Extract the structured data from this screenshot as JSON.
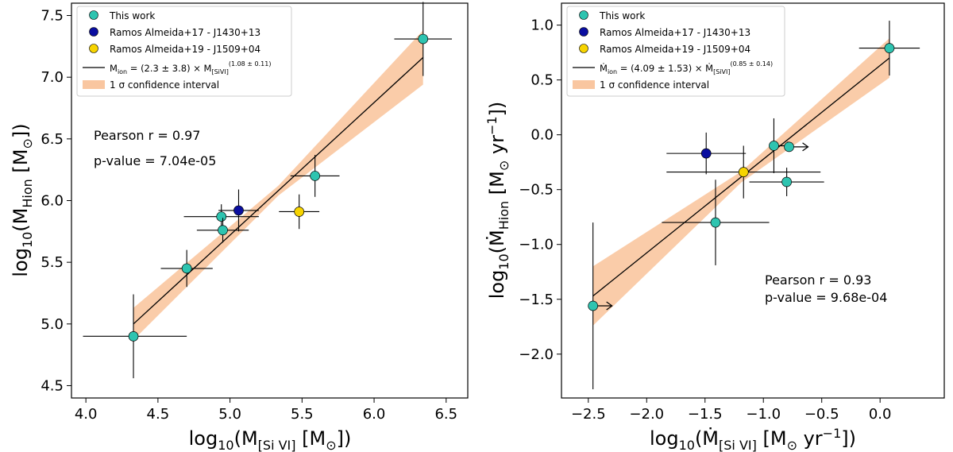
{
  "chart_data": [
    {
      "type": "scatter",
      "panel": "left",
      "xlabel": "log10(M[SiVI] [M⊙])",
      "ylabel": "log10(MHion [M⊙])",
      "xlim": [
        3.9,
        6.65
      ],
      "ylim": [
        4.4,
        7.6
      ],
      "xticks": [
        4.0,
        4.5,
        5.0,
        5.5,
        6.0,
        6.5
      ],
      "yticks": [
        4.5,
        5.0,
        5.5,
        6.0,
        6.5,
        7.0,
        7.5
      ],
      "legend": [
        "This work",
        "Ramos Almeida+17 - J1430+13",
        "Ramos Almeida+19 - J1509+04",
        "Mion = (2.3 ± 3.8) × M[SiVI]^(1.08 ± 0.11)",
        "1 σ confidence interval"
      ],
      "annotations": [
        "Pearson r = 0.97",
        "p-value = 7.04e-05"
      ],
      "fit": {
        "x0": 4.33,
        "x1": 6.34,
        "y0": 5.0,
        "y1": 7.16,
        "band_half_lo": 0.13,
        "band_half_mid": 0.04,
        "band_half_hi": 0.22
      },
      "series": [
        {
          "name": "This work",
          "color": "#2ec4b0",
          "points": [
            {
              "x": 4.33,
              "y": 4.9,
              "xerr": [
                0.35,
                0.37
              ],
              "yerr": [
                0.34,
                0.34
              ]
            },
            {
              "x": 4.7,
              "y": 5.45,
              "xerr": [
                0.18,
                0.18
              ],
              "yerr": [
                0.15,
                0.15
              ]
            },
            {
              "x": 4.94,
              "y": 5.87,
              "xerr": [
                0.26,
                0.26
              ],
              "yerr": [
                0.1,
                0.1
              ]
            },
            {
              "x": 4.95,
              "y": 5.76,
              "xerr": [
                0.18,
                0.18
              ],
              "yerr": [
                0.1,
                0.1
              ]
            },
            {
              "x": 5.59,
              "y": 6.2,
              "xerr": [
                0.17,
                0.17
              ],
              "yerr": [
                0.17,
                0.17
              ]
            },
            {
              "x": 6.34,
              "y": 7.31,
              "xerr": [
                0.2,
                0.2
              ],
              "yerr": [
                0.3,
                0.3
              ]
            }
          ]
        },
        {
          "name": "Ramos Almeida+17 - J1430+13",
          "color": "#0a0ea0",
          "points": [
            {
              "x": 5.06,
              "y": 5.92,
              "xerr": [
                0.14,
                0.14
              ],
              "yerr": [
                0.17,
                0.17
              ]
            }
          ]
        },
        {
          "name": "Ramos Almeida+19 - J1509+04",
          "color": "#f7d400",
          "points": [
            {
              "x": 5.48,
              "y": 5.91,
              "xerr": [
                0.14,
                0.14
              ],
              "yerr": [
                0.14,
                0.14
              ]
            }
          ]
        }
      ]
    },
    {
      "type": "scatter",
      "panel": "right",
      "xlabel": "log10(Ṁ[SiVI] [M⊙ yr⁻¹])",
      "ylabel": "log10(ṀHion [M⊙ yr⁻¹])",
      "xlim": [
        -2.73,
        0.55
      ],
      "ylim": [
        -2.4,
        1.2
      ],
      "xticks": [
        -2.5,
        -2.0,
        -1.5,
        -1.0,
        -0.5,
        0.0
      ],
      "yticks": [
        -2.0,
        -1.5,
        -1.0,
        -0.5,
        0.0,
        0.5,
        1.0
      ],
      "legend": [
        "This work",
        "Ramos Almeida+17 - J1430+13",
        "Ramos Almeida+19 - J1509+04",
        "Ṁion = (4.09 ± 1.53) × Ṁ[SiVI]^(0.85 ± 0.14)",
        "1 σ confidence interval"
      ],
      "annotations": [
        "Pearson r = 0.93",
        "p-value = 9.68e-04"
      ],
      "fit": {
        "x0": -2.46,
        "x1": 0.08,
        "y0": -1.47,
        "y1": 0.7,
        "band_half_lo": 0.27,
        "band_half_mid": 0.05,
        "band_half_hi": 0.18
      },
      "series": [
        {
          "name": "This work",
          "color": "#2ec4b0",
          "points": [
            {
              "x": -2.46,
              "y": -1.56,
              "xerr": [
                0.0,
                0.0
              ],
              "yerr": [
                0.76,
                0.76
              ],
              "lower_limit_x": true
            },
            {
              "x": -1.41,
              "y": -0.8,
              "xerr": [
                0.46,
                0.46
              ],
              "yerr": [
                0.39,
                0.39
              ]
            },
            {
              "x": -0.91,
              "y": -0.1,
              "xerr": [
                0.0,
                0.0
              ],
              "yerr": [
                0.25,
                0.25
              ],
              "lower_limit_x": true
            },
            {
              "x": -0.78,
              "y": -0.11,
              "xerr": [
                0.0,
                0.0
              ],
              "yerr": [
                0.0,
                0.0
              ],
              "lower_limit_x": true
            },
            {
              "x": -0.8,
              "y": -0.43,
              "xerr": [
                0.32,
                0.32
              ],
              "yerr": [
                0.13,
                0.13
              ]
            },
            {
              "x": 0.08,
              "y": 0.79,
              "xerr": [
                0.26,
                0.26
              ],
              "yerr": [
                0.25,
                0.25
              ]
            }
          ]
        },
        {
          "name": "Ramos Almeida+17 - J1430+13",
          "color": "#0a0ea0",
          "points": [
            {
              "x": -1.49,
              "y": -0.17,
              "xerr": [
                0.34,
                0.34
              ],
              "yerr": [
                0.19,
                0.19
              ]
            }
          ]
        },
        {
          "name": "Ramos Almeida+19 - J1509+04",
          "color": "#f7d400",
          "points": [
            {
              "x": -1.17,
              "y": -0.34,
              "xerr": [
                0.66,
                0.66
              ],
              "yerr": [
                0.24,
                0.24
              ]
            }
          ]
        }
      ]
    }
  ]
}
